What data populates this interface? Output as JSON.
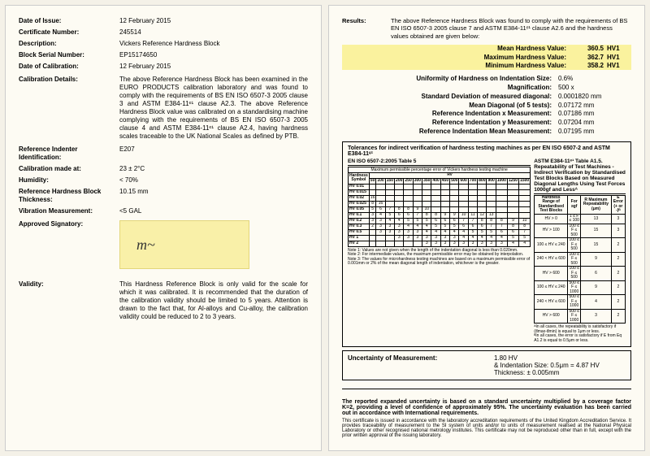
{
  "left": {
    "doi": {
      "label": "Date of Issue:",
      "val": "12 February 2015"
    },
    "cert": {
      "label": "Certificate Number:",
      "val": "245514"
    },
    "desc": {
      "label": "Description:",
      "val": "Vickers Reference Hardness Block"
    },
    "bsn": {
      "label": "Block Serial Number:",
      "val": "EP15174650"
    },
    "doc": {
      "label": "Date of Calibration:",
      "val": "12 February 2015"
    },
    "cdet": {
      "label": "Calibration Details:",
      "val": "The above Reference Hardness Block has been examined in the EURO PRODUCTS calibration laboratory and was found to comply with the requirements of BS EN ISO 6507-3 2005 clause 3 and ASTM E384-11ᵉ¹ clause A2.3. The above Reference Hardness Block value was calibrated on a standardising machine complying with the requirements of BS EN ISO 6507-3 2005 clause 4 and ASTM E384-11ᵉ¹ clause A2.4, having hardness scales traceable to the UK National Scales as defined by PTB."
    },
    "ri": {
      "label": "Reference Indenter Identification:",
      "val": "E207"
    },
    "cma": {
      "label": "Calibration made at:",
      "val": "23 ± 2°C"
    },
    "hum": {
      "label": "Humidity:",
      "val": "< 70%"
    },
    "rhbt": {
      "label": "Reference Hardness Block Thickness:",
      "val": "10.15 mm"
    },
    "vib": {
      "label": "Vibration Measurement:",
      "val": "<5 GAL"
    },
    "sig": {
      "label": "Approved Signatory:"
    },
    "valid": {
      "label": "Validity:",
      "val": "This Hardness Reference Block is only valid for the scale for which it was calibrated. It is recommended that the duration of the calibration validity should be limited to 5 years. Attention is drawn to the fact that, for Al-alloys and Cu-alloy, the calibration validity could be reduced to 2 to 3 years."
    }
  },
  "right": {
    "results": {
      "label": "Results:",
      "val": "The above Reference Hardness Block was found to comply with the requirements of BS EN ISO 6507-3 2005 clause 7 and ASTM E384-11ᵉ¹ clause A2.6 and the hardness values obtained are given below:"
    },
    "mean": {
      "k": "Mean Hardness Value:",
      "v": "360.5",
      "u": "HV1"
    },
    "max": {
      "k": "Maximum Hardness Value:",
      "v": "362.7",
      "u": "HV1"
    },
    "min": {
      "k": "Minimum Hardness Value:",
      "v": "358.2",
      "u": "HV1"
    },
    "m": [
      {
        "k": "Uniformity of Hardness on Indentation Size:",
        "v": "0.6%"
      },
      {
        "k": "Magnification:",
        "v": "500 x"
      },
      {
        "k": "Standard Deviation of measured diagonal:",
        "v": "0.0001820 mm"
      },
      {
        "k": "Mean Diagonal (of 5 tests):",
        "v": "0.07172 mm"
      },
      {
        "k": "Reference Indentation x Measurement:",
        "v": "0.07186 mm"
      },
      {
        "k": "Reference Indentation y Measurement:",
        "v": "0.07204 mm"
      },
      {
        "k": "Reference Indentation Mean Measurement:",
        "v": "0.07195 mm"
      }
    ],
    "tol": {
      "hdr": "Tolerances for indirect verification of hardness testing machines as per EN ISO 6507-2 and ASTM E384-11ᵉ¹",
      "l": {
        "title": "EN ISO 6507-2:2005 Table 5",
        "sub": "Maximum permissible percentage error of Vickers hardness testing machine",
        "hcol": "Hardness Symbol",
        "syms": [
          "HV 0.01",
          "HV 0.015",
          "HV 0.02",
          "HV 0.025",
          "HV 0.05",
          "HV 0.1",
          "HV 0.2",
          "HV 0.3",
          "HV 0.5",
          "HV 1",
          "HV 2"
        ],
        "bands": [
          "50",
          "100",
          "150",
          "200",
          "250",
          "300",
          "350",
          "400",
          "450",
          "500",
          "600",
          "700",
          "800",
          "900",
          "1000",
          "1250",
          "1500"
        ],
        "rows": [
          [
            "",
            "",
            "",
            "",
            "",
            "",
            "",
            "",
            "",
            "",
            "",
            "",
            "",
            "",
            "",
            "",
            ""
          ],
          [
            "",
            "",
            "",
            "",
            "",
            "",
            "",
            "",
            "",
            "",
            "",
            "",
            "",
            "",
            "",
            "",
            ""
          ],
          [
            "16",
            "",
            "",
            "",
            "",
            "",
            "",
            "",
            "",
            "",
            "",
            "",
            "",
            "",
            "",
            "",
            ""
          ],
          [
            "8",
            "16",
            "",
            "",
            "",
            "",
            "",
            "",
            "",
            "",
            "",
            "",
            "",
            "",
            "",
            "",
            ""
          ],
          [
            "5",
            "6",
            "7",
            "8",
            "8",
            "9",
            "10",
            "",
            "",
            "",
            "",
            "",
            "",
            "",
            "",
            "",
            ""
          ],
          [
            "3",
            "4",
            "5",
            "6",
            "6",
            "7",
            "8",
            "8",
            "9",
            "9",
            "10",
            "11",
            "12",
            "13",
            "",
            "",
            ""
          ],
          [
            "3",
            "3",
            "4",
            "4",
            "5",
            "5",
            "5",
            "6",
            "6",
            "6",
            "7",
            "7",
            "8",
            "8",
            "8",
            "9",
            "10"
          ],
          [
            "2",
            "3",
            "3",
            "3",
            "4",
            "4",
            "4",
            "5",
            "5",
            "5",
            "6",
            "6",
            "6",
            "7",
            "7",
            "8",
            "8"
          ],
          [
            "",
            "3",
            "3",
            "3",
            "3",
            "3",
            "4",
            "4",
            "4",
            "4",
            "4",
            "5",
            "5",
            "5",
            "6",
            "6",
            "7"
          ],
          [
            "",
            "",
            "",
            "3",
            "3",
            "3",
            "3",
            "3",
            "3",
            "3",
            "4",
            "4",
            "4",
            "4",
            "4",
            "5",
            "5"
          ],
          [
            "",
            "",
            "",
            "",
            "",
            "",
            "3",
            "3",
            "3",
            "3",
            "3",
            "3",
            "3",
            "3",
            "3",
            "4",
            "4"
          ]
        ],
        "notes": "Note 1: Values are not given when the length of the indentation diagonal is less than 0.020mm.\nNote 2: For intermediate values, the maximum permissible error may be obtained by interpolation.\nNote 3: The values for microhardness testing machines are based on a maximum permissible error of 0.001mm or 2% of the mean diagonal length of indentation, whichever is the greater."
      },
      "r": {
        "title": "ASTM E384-11ᵉ¹ Table A1.5. Repeatability of Test Machines - Indirect Verification by Standardised Test Blocks Based on Measured Diagonal Lengths Using Test Forces 1000gf and Lessᴬ",
        "h": [
          "Hardness Range of Standardised Test Blocks",
          "For ≥gf",
          "R Maximum Repeatability (μm)",
          "E Error (+ or -)ᴮ"
        ],
        "rows": [
          [
            "HV > 0",
            "1 ≤ F ≤ 100",
            "13",
            "3"
          ],
          [
            "HV > 100",
            "100 ≤ F ≤ 500",
            "15",
            "3"
          ],
          [
            "100 ≤ HV ≤ 240",
            "100 ≤ F ≤ 500",
            "15",
            "2"
          ],
          [
            "240 < HV ≤ 600",
            "100 ≤ F ≤ 500",
            "9",
            "2"
          ],
          [
            "HV > 600",
            "100 ≤ F ≤ 500",
            "6",
            "2"
          ],
          [
            "100 ≤ HV ≤ 240",
            "500 ≤ F ≤ 1000",
            "9",
            "2"
          ],
          [
            "240 < HV ≤ 600",
            "500 ≤ F ≤ 1000",
            "4",
            "2"
          ],
          [
            "HV > 600",
            "500 ≤ F ≤ 1000",
            "3",
            "2"
          ]
        ],
        "notes": "ᴬIn all cases, the repeatability is satisfactory if (d̄max-d̄min) is equal to 1μm or less.\nᴮIn all cases, the error is satisfactory if E from Eq A1.2 is equal to 0.5μm or less."
      }
    },
    "uom": {
      "k": "Uncertainty of Measurement:",
      "v1": "1.80 HV",
      "v2": "& Indentation Size: 0.5μm = 4.87 HV",
      "v3": "Thickness: ± 0.005mm"
    },
    "foot": {
      "b": "The reported expanded uncertainty is based on a standard uncertainty multiplied by a coverage factor K=2, providing a level of confidence of approximately 95%. The uncertainty evaluation has been carried out in accordance with International requirements.",
      "r": "This certificate is issued in accordance with the laboratory accreditation requirements of the United Kingdom Accreditation Service. It provides traceability of measurement to the SI system of units and/or to units of measurement realised at the National Physical Laboratory or other recognised national metrology institutes. This certificate may not be reproduced other than in full, except with the prior written approval of the issuing laboratory."
    }
  }
}
